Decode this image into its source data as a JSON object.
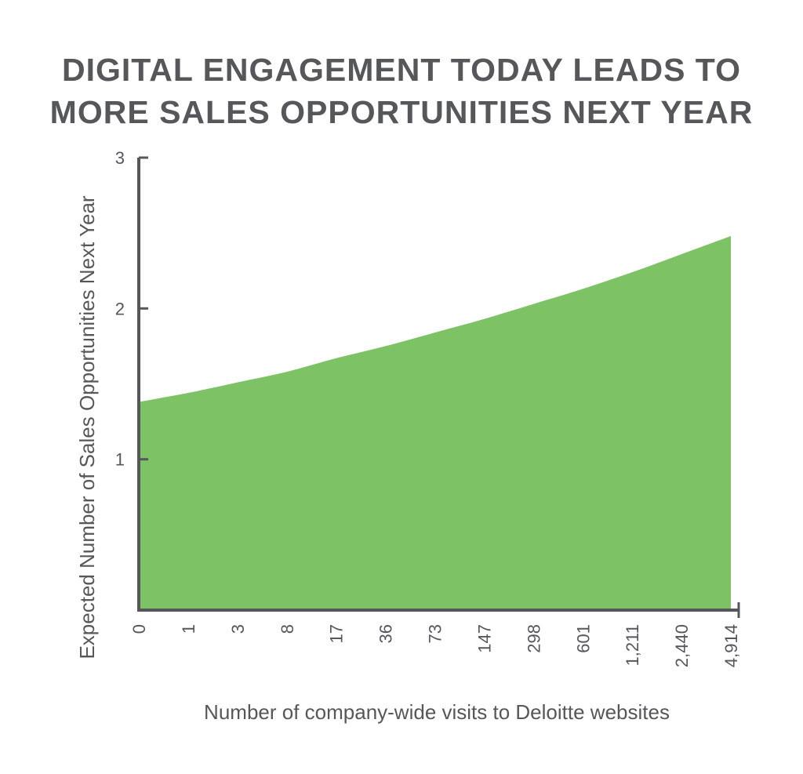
{
  "chart_data": {
    "type": "area",
    "title": [
      "DIGITAL ENGAGEMENT TODAY LEADS TO",
      "MORE SALES OPPORTUNITIES NEXT YEAR"
    ],
    "xlabel": "Number of company-wide visits to Deloitte websites",
    "ylabel": "Expected Number of Sales Opportunities Next Year",
    "x": [
      "0",
      "1",
      "3",
      "8",
      "17",
      "36",
      "73",
      "147",
      "298",
      "601",
      "1,211",
      "2,440",
      "4,914"
    ],
    "y": [
      1.38,
      1.44,
      1.51,
      1.58,
      1.67,
      1.75,
      1.84,
      1.93,
      2.03,
      2.13,
      2.24,
      2.36,
      2.48
    ],
    "yticks": [
      1,
      2,
      3
    ],
    "ylim": [
      0,
      3
    ],
    "grid": false,
    "legend": "none",
    "fill_color": "#7dc365",
    "axis_color": "#55575a"
  }
}
